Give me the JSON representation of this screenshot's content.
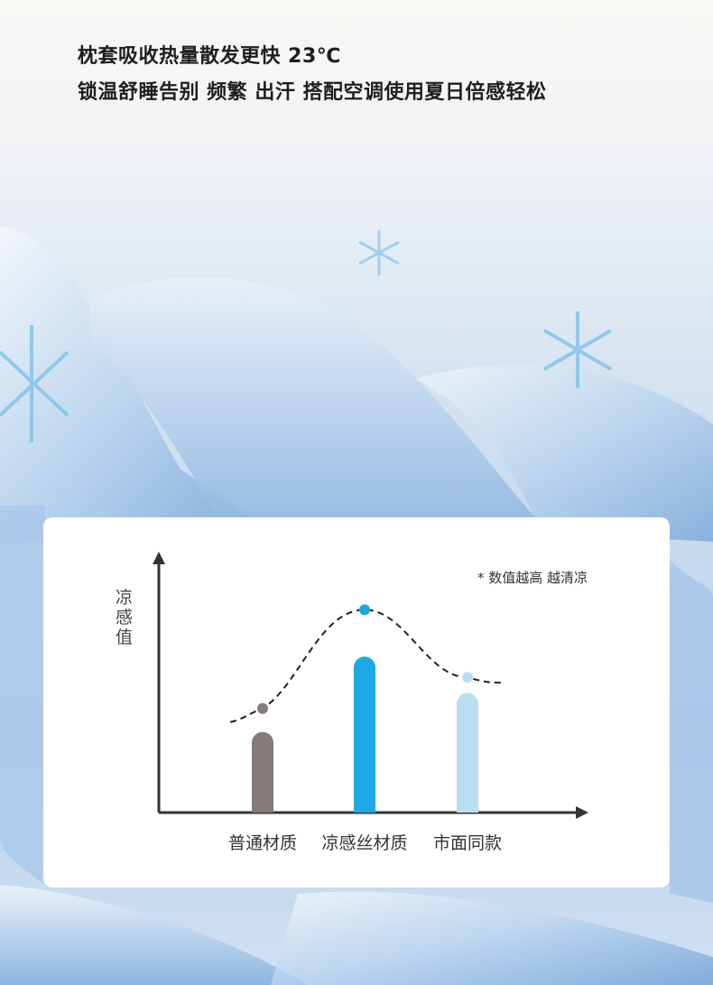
{
  "headline": {
    "line1": "枕套吸收热量散发更快 23℃",
    "line2": "锁温舒睡告别 频繁 出汗 搭配空调使用夏日倍感轻松"
  },
  "chart_data": {
    "type": "bar",
    "ylabel": "凉感值",
    "note": "* 数值越高 越清凉",
    "categories": [
      "普通材质",
      "凉感丝材质",
      "市面同款"
    ],
    "values": [
      0.31,
      0.6,
      0.46
    ],
    "trend_points": [
      0.4,
      0.78,
      0.52
    ],
    "trend_style": "dashed",
    "ylim": [
      0,
      1
    ],
    "grid": false,
    "colors": [
      "#857b79",
      "#1fa8e4",
      "#b9def0"
    ]
  }
}
